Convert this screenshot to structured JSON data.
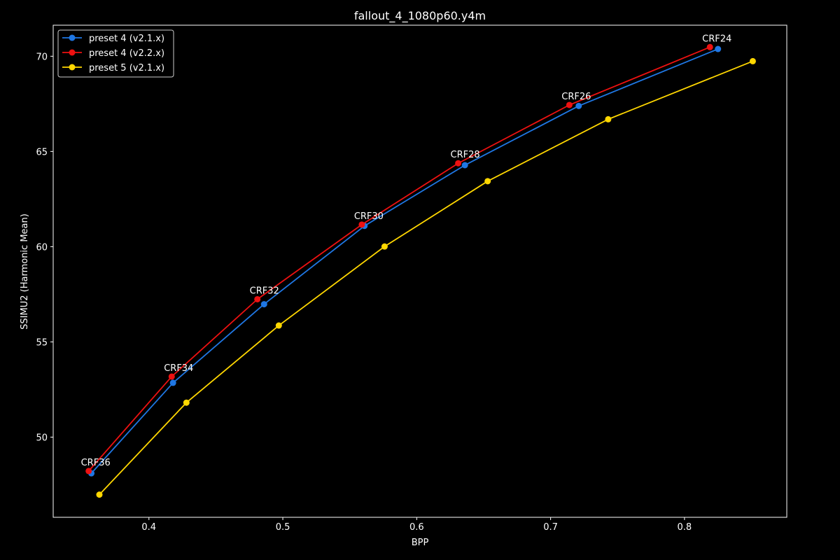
{
  "chart_data": {
    "type": "line",
    "title": "fallout_4_1080p60.y4m",
    "xlabel": "BPP",
    "ylabel": "SSIMU2 (Harmonic Mean)",
    "xlim": [
      0.3285,
      0.8764
    ],
    "ylim": [
      45.79,
      71.63
    ],
    "xticks": [
      0.4,
      0.5,
      0.6,
      0.7,
      0.8
    ],
    "xtick_labels": [
      "0.4",
      "0.5",
      "0.6",
      "0.7",
      "0.8"
    ],
    "yticks": [
      50,
      55,
      60,
      65,
      70
    ],
    "ytick_labels": [
      "50",
      "55",
      "60",
      "65",
      "70"
    ],
    "grid": false,
    "legend_position": "top-left",
    "background": "#000000",
    "series": [
      {
        "name": "preset 4 (v2.1.x)",
        "color": "#1f77e4",
        "marker": "circle",
        "x": [
          0.357,
          0.418,
          0.486,
          0.561,
          0.636,
          0.721,
          0.825
        ],
        "y": [
          48.1,
          52.85,
          56.98,
          61.09,
          64.28,
          67.39,
          70.38
        ]
      },
      {
        "name": "preset 4 (v2.2.x)",
        "color": "#ee1111",
        "marker": "circle",
        "x": [
          0.355,
          0.417,
          0.481,
          0.559,
          0.631,
          0.714,
          0.819
        ],
        "y": [
          48.22,
          53.18,
          57.24,
          61.16,
          64.38,
          67.44,
          70.48
        ]
      },
      {
        "name": "preset 5 (v2.1.x)",
        "color": "#ffd700",
        "marker": "circle",
        "x": [
          0.363,
          0.428,
          0.497,
          0.576,
          0.653,
          0.743,
          0.851
        ],
        "y": [
          46.98,
          51.81,
          55.86,
          60.01,
          63.44,
          66.69,
          69.74
        ]
      }
    ],
    "annotations": [
      {
        "text": "CRF36",
        "x": 0.355,
        "y": 48.22
      },
      {
        "text": "CRF34",
        "x": 0.417,
        "y": 53.18
      },
      {
        "text": "CRF32",
        "x": 0.481,
        "y": 57.24
      },
      {
        "text": "CRF30",
        "x": 0.559,
        "y": 61.16
      },
      {
        "text": "CRF28",
        "x": 0.631,
        "y": 64.38
      },
      {
        "text": "CRF26",
        "x": 0.714,
        "y": 67.44
      },
      {
        "text": "CRF24",
        "x": 0.819,
        "y": 70.48
      }
    ]
  }
}
